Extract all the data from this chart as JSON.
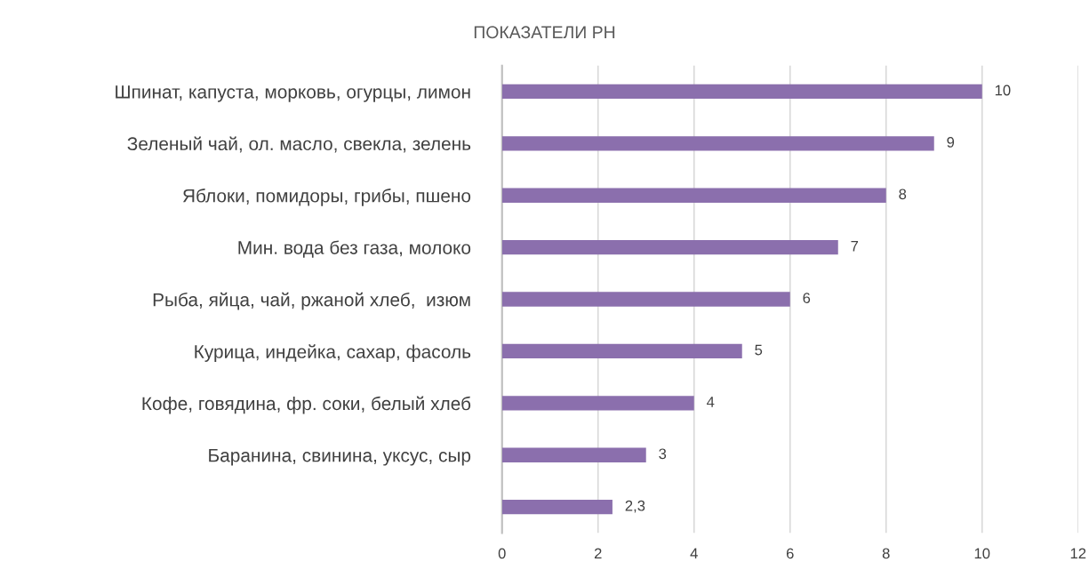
{
  "chart_data": {
    "type": "bar",
    "orientation": "horizontal",
    "title": "ПОКАЗАТЕЛИ PH",
    "categories": [
      "Шпинат, капуста, морковь, огурцы, лимон",
      "Зеленый чай, ол. масло, свекла, зелень",
      "Яблоки, помидоры, грибы, пшено",
      "Мин. вода без газа, молоко",
      "Рыба, яйца, чай, ржаной хлеб,  изюм",
      "Курица, индейка, сахар, фасоль",
      "Кофе, говядина, фр. соки, белый хлеб",
      "Баранина, свинина, уксус, сыр",
      null
    ],
    "values": [
      10,
      9,
      8,
      7,
      6,
      5,
      4,
      3,
      2.3
    ],
    "value_labels": [
      "10",
      "9",
      "8",
      "7",
      "6",
      "5",
      "4",
      "3",
      "2,3"
    ],
    "color": "#8b6fad",
    "xlim": [
      0,
      12
    ],
    "xticks": [
      0,
      2,
      4,
      6,
      8,
      10,
      12
    ],
    "grid": "x",
    "legend": false
  }
}
